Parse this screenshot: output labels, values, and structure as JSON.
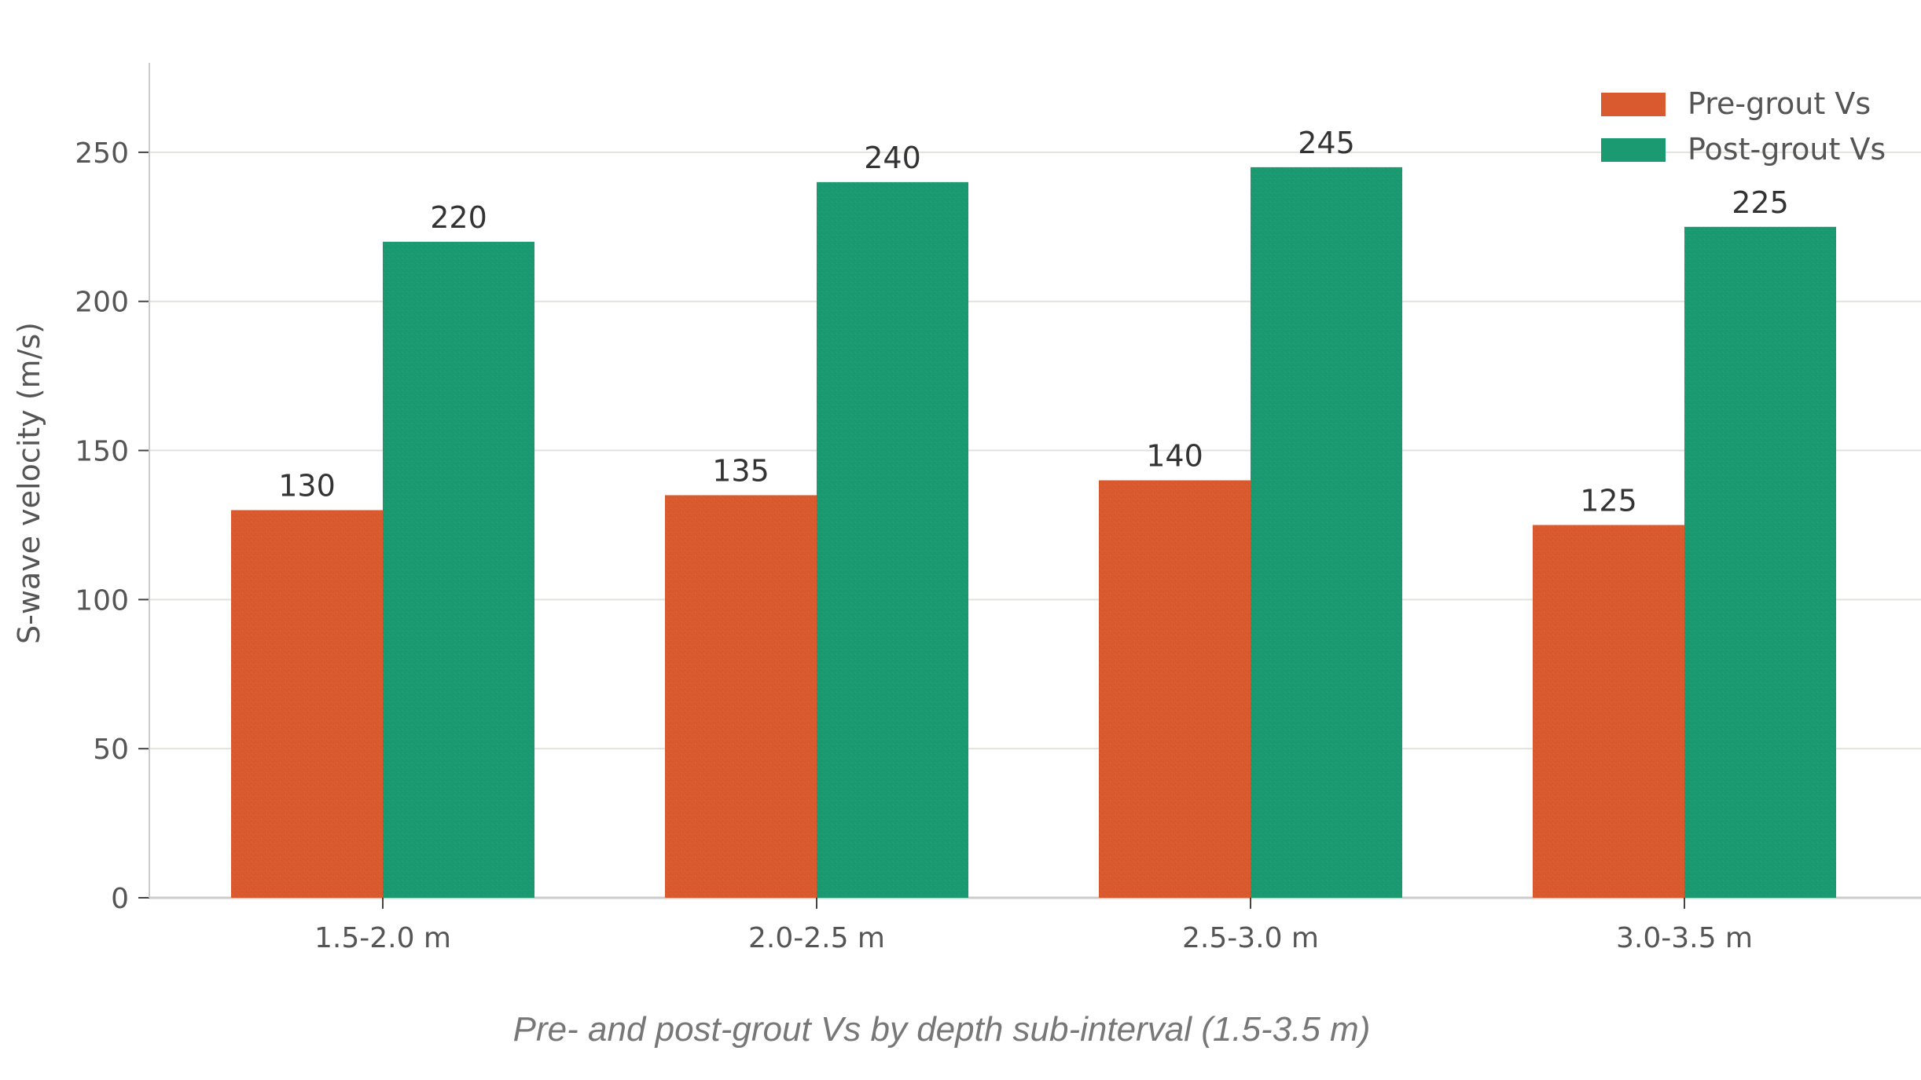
{
  "colors": {
    "pre": "#D85A2E",
    "post": "#1B9A72",
    "grid": "#E2E2DC",
    "axis": "#CCCCCC"
  },
  "chart_data": {
    "type": "bar",
    "categories": [
      "1.5-2.0 m",
      "2.0-2.5 m",
      "2.5-3.0 m",
      "3.0-3.5 m"
    ],
    "series": [
      {
        "name": "Pre-grout Vs",
        "values": [
          130,
          135,
          140,
          125
        ]
      },
      {
        "name": "Post-grout Vs",
        "values": [
          220,
          240,
          245,
          225
        ]
      }
    ],
    "ylabel": "S-wave velocity (m/s)",
    "xlabel": "",
    "yticks": [
      0,
      50,
      100,
      150,
      200,
      250
    ],
    "ylim": [
      0,
      280
    ],
    "grid": "horizontal",
    "legend_position": "top-right",
    "caption": "Pre- and post-grout Vs by depth sub-interval (1.5-3.5 m)"
  }
}
